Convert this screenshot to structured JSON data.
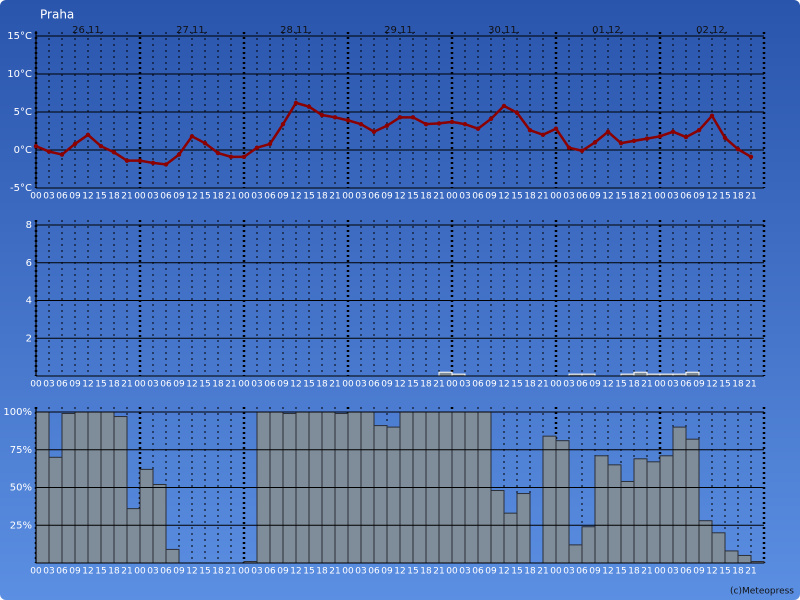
{
  "x_axis": {
    "dates": [
      "26.11.",
      "27.11.",
      "28.11.",
      "29.11.",
      "30.11.",
      "01.12.",
      "02.12."
    ],
    "hours": [
      "00",
      "03",
      "06",
      "09",
      "12",
      "15",
      "18",
      "21"
    ]
  },
  "credit": "(c)Meteopress",
  "chart_data": [
    {
      "type": "line",
      "title": "Praha",
      "color": "#8b0000",
      "grid": true,
      "ylim": [
        -5,
        15
      ],
      "yticks": [
        {
          "value": -5,
          "label": "-5°C"
        },
        {
          "value": 0,
          "label": "0°C"
        },
        {
          "value": 5,
          "label": "5°C"
        },
        {
          "value": 10,
          "label": "10°C"
        },
        {
          "value": 15,
          "label": "15°C"
        }
      ],
      "values": [
        0.5,
        -0.2,
        -0.6,
        0.8,
        2,
        0.5,
        -0.3,
        -1.4,
        -1.4,
        -1.7,
        -1.9,
        -0.6,
        1.8,
        0.9,
        -0.4,
        -0.9,
        -0.9,
        0.3,
        0.8,
        3.4,
        6.2,
        5.7,
        4.6,
        4.3,
        3.9,
        3.4,
        2.4,
        3.2,
        4.3,
        4.3,
        3.4,
        3.5,
        3.7,
        3.4,
        2.8,
        4.1,
        5.8,
        4.9,
        2.6,
        2,
        2.8,
        0.3,
        -0.1,
        1,
        2.4,
        0.9,
        1.2,
        1.5,
        1.8,
        2.4,
        1.7,
        2.6,
        4.5,
        1.6,
        0.1,
        -0.9
      ]
    },
    {
      "type": "bar",
      "color": "#7f8c99",
      "grid": true,
      "ylim": [
        0,
        8
      ],
      "yticks": [
        2,
        4,
        6,
        8
      ],
      "values": [
        0,
        0,
        0,
        0,
        0,
        0,
        0,
        0,
        0,
        0,
        0,
        0,
        0,
        0,
        0,
        0,
        0,
        0,
        0,
        0,
        0,
        0,
        0,
        0,
        0,
        0,
        0,
        0,
        0,
        0,
        0,
        0.2,
        0.1,
        0,
        0,
        0,
        0,
        0,
        0,
        0,
        0,
        0.1,
        0.1,
        0,
        0,
        0.1,
        0.2,
        0.1,
        0.1,
        0.1,
        0.2,
        0,
        0,
        0,
        0,
        0
      ]
    },
    {
      "type": "bar",
      "color": "#7f8c99",
      "grid": true,
      "ylim": [
        0,
        100
      ],
      "yticks": [
        {
          "value": 25,
          "label": "25%"
        },
        {
          "value": 50,
          "label": "50%"
        },
        {
          "value": 75,
          "label": "75%"
        },
        {
          "value": 100,
          "label": "100%"
        }
      ],
      "values": [
        100,
        70,
        99,
        100,
        100,
        100,
        97,
        36,
        62,
        52,
        9,
        0,
        0,
        0,
        0,
        0,
        1,
        100,
        100,
        99,
        100,
        100,
        100,
        99,
        100,
        100,
        91,
        90,
        100,
        100,
        100,
        100,
        100,
        100,
        100,
        48,
        33,
        46,
        0,
        84,
        81,
        12,
        24,
        71,
        65,
        54,
        69,
        67,
        71,
        90,
        82,
        28,
        20,
        8,
        5,
        1
      ]
    }
  ]
}
